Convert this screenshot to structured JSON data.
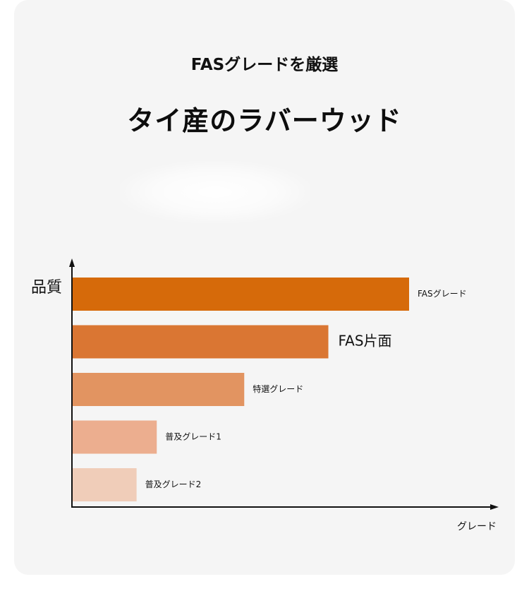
{
  "header": {
    "subtitle": "FASグレードを厳選",
    "title": "タイ産のラバーウッド"
  },
  "chart_data": {
    "type": "bar",
    "orientation": "horizontal",
    "ylabel": "品質",
    "xlabel": "グレード",
    "categories": [
      "FASグレード",
      "FAS片面",
      "特選グレード",
      "普及グレード1",
      "普及グレード2"
    ],
    "values": [
      100,
      76,
      51,
      25,
      19
    ],
    "colors": [
      "#d66a0a",
      "#da7633",
      "#e29461",
      "#ecae8f",
      "#f0cdb9"
    ],
    "xlim": [
      0,
      100
    ],
    "grid": false,
    "legend": "none"
  }
}
